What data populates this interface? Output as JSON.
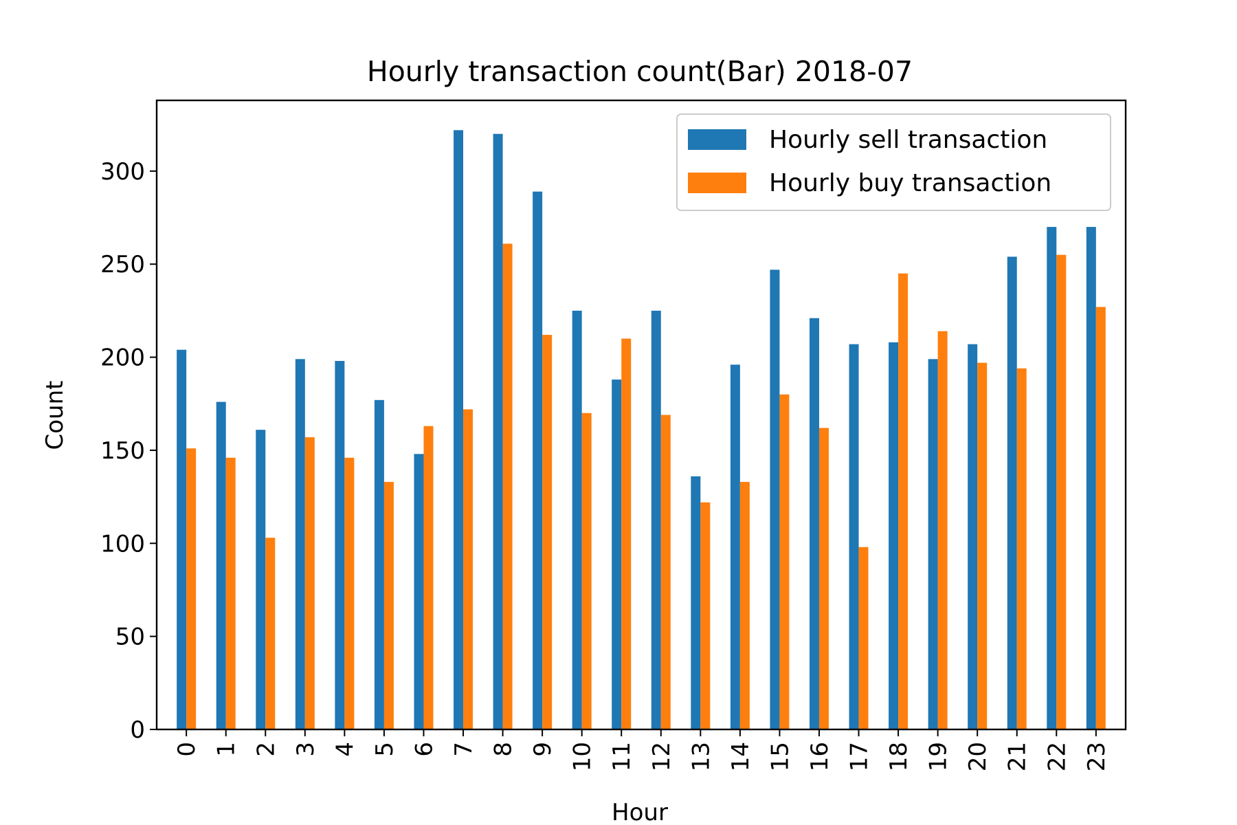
{
  "chart_data": {
    "type": "bar",
    "title": "Hourly transaction count(Bar) 2018-07",
    "xlabel": "Hour",
    "ylabel": "Count",
    "ylim": [
      0,
      338
    ],
    "yticks": [
      0,
      50,
      100,
      150,
      200,
      250,
      300
    ],
    "grid": false,
    "legend_position": "top-right",
    "categories": [
      "0",
      "1",
      "2",
      "3",
      "4",
      "5",
      "6",
      "7",
      "8",
      "9",
      "10",
      "11",
      "12",
      "13",
      "14",
      "15",
      "16",
      "17",
      "18",
      "19",
      "20",
      "21",
      "22",
      "23"
    ],
    "series": [
      {
        "name": "Hourly sell transaction",
        "color": "#1f77b4",
        "values": [
          204,
          176,
          161,
          199,
          198,
          177,
          148,
          322,
          320,
          289,
          225,
          188,
          225,
          136,
          196,
          247,
          221,
          207,
          208,
          199,
          207,
          254,
          270,
          270
        ]
      },
      {
        "name": "Hourly buy transaction",
        "color": "#ff7f0e",
        "values": [
          151,
          146,
          103,
          157,
          146,
          133,
          163,
          172,
          261,
          212,
          170,
          210,
          169,
          122,
          133,
          180,
          162,
          98,
          245,
          214,
          197,
          194,
          255,
          227
        ]
      }
    ]
  }
}
